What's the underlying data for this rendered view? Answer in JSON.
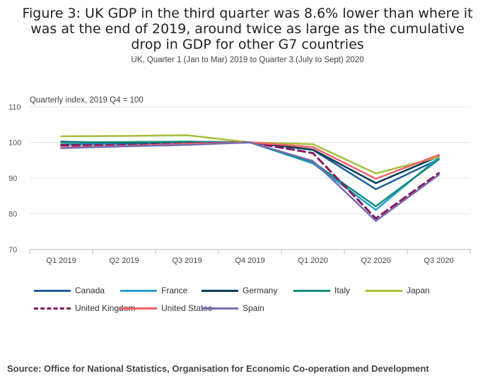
{
  "title": "Figure 3: UK GDP in the third quarter was 8.6% lower than where it was at the end of 2019, around twice as large as the cumulative drop in GDP for other G7 countries",
  "subtitle": "UK, Quarter 1 (Jan to Mar) 2019 to Quarter 3 (July to Sept) 2020",
  "source": "Source: Office for National Statistics, Organisation for Economic Co-operation and Development",
  "chart_data": {
    "type": "line",
    "title": "Figure 3: UK GDP in the third quarter was 8.6% lower than where it was at the end of 2019, around twice as large as the cumulative drop in GDP for other G7 countries",
    "ylabel": "Quarterly index, 2019 Q4 = 100",
    "xlabel": "",
    "categories": [
      "Q1 2019",
      "Q2 2019",
      "Q3 2019",
      "Q4 2019",
      "Q1 2020",
      "Q2 2020",
      "Q3 2020"
    ],
    "ylim": [
      70,
      110
    ],
    "yticks": [
      70,
      80,
      90,
      100,
      110
    ],
    "grid": true,
    "legend_position": "bottom",
    "series": [
      {
        "name": "Canada",
        "color": "#206095",
        "dash": false,
        "values": [
          99.4,
          99.8,
          100.1,
          100,
          97.9,
          86.9,
          95.3
        ]
      },
      {
        "name": "France",
        "color": "#27a0cc",
        "dash": false,
        "values": [
          99.3,
          99.5,
          99.9,
          100,
          94.1,
          81.1,
          95.8
        ]
      },
      {
        "name": "Germany",
        "color": "#003c57",
        "dash": false,
        "values": [
          100.2,
          99.9,
          100.2,
          100,
          98.0,
          88.6,
          96.1
        ]
      },
      {
        "name": "Italy",
        "color": "#118c7b",
        "dash": false,
        "values": [
          100.0,
          100.1,
          100.2,
          100,
          94.5,
          82.1,
          95.2
        ]
      },
      {
        "name": "Japan",
        "color": "#a8bd3a",
        "dash": false,
        "values": [
          101.7,
          101.8,
          102.0,
          100,
          99.5,
          91.3,
          95.9
        ]
      },
      {
        "name": "United Kingdom",
        "color": "#871a5b",
        "dash": true,
        "values": [
          99.2,
          99.2,
          99.7,
          100,
          97.0,
          78.7,
          91.4
        ]
      },
      {
        "name": "United States",
        "color": "#f66068",
        "dash": false,
        "values": [
          98.6,
          99.0,
          99.6,
          100,
          98.7,
          89.8,
          96.5
        ]
      },
      {
        "name": "Spain",
        "color": "#746cb1",
        "dash": false,
        "values": [
          98.4,
          98.9,
          99.3,
          100,
          94.8,
          78.0,
          90.9
        ]
      }
    ]
  }
}
